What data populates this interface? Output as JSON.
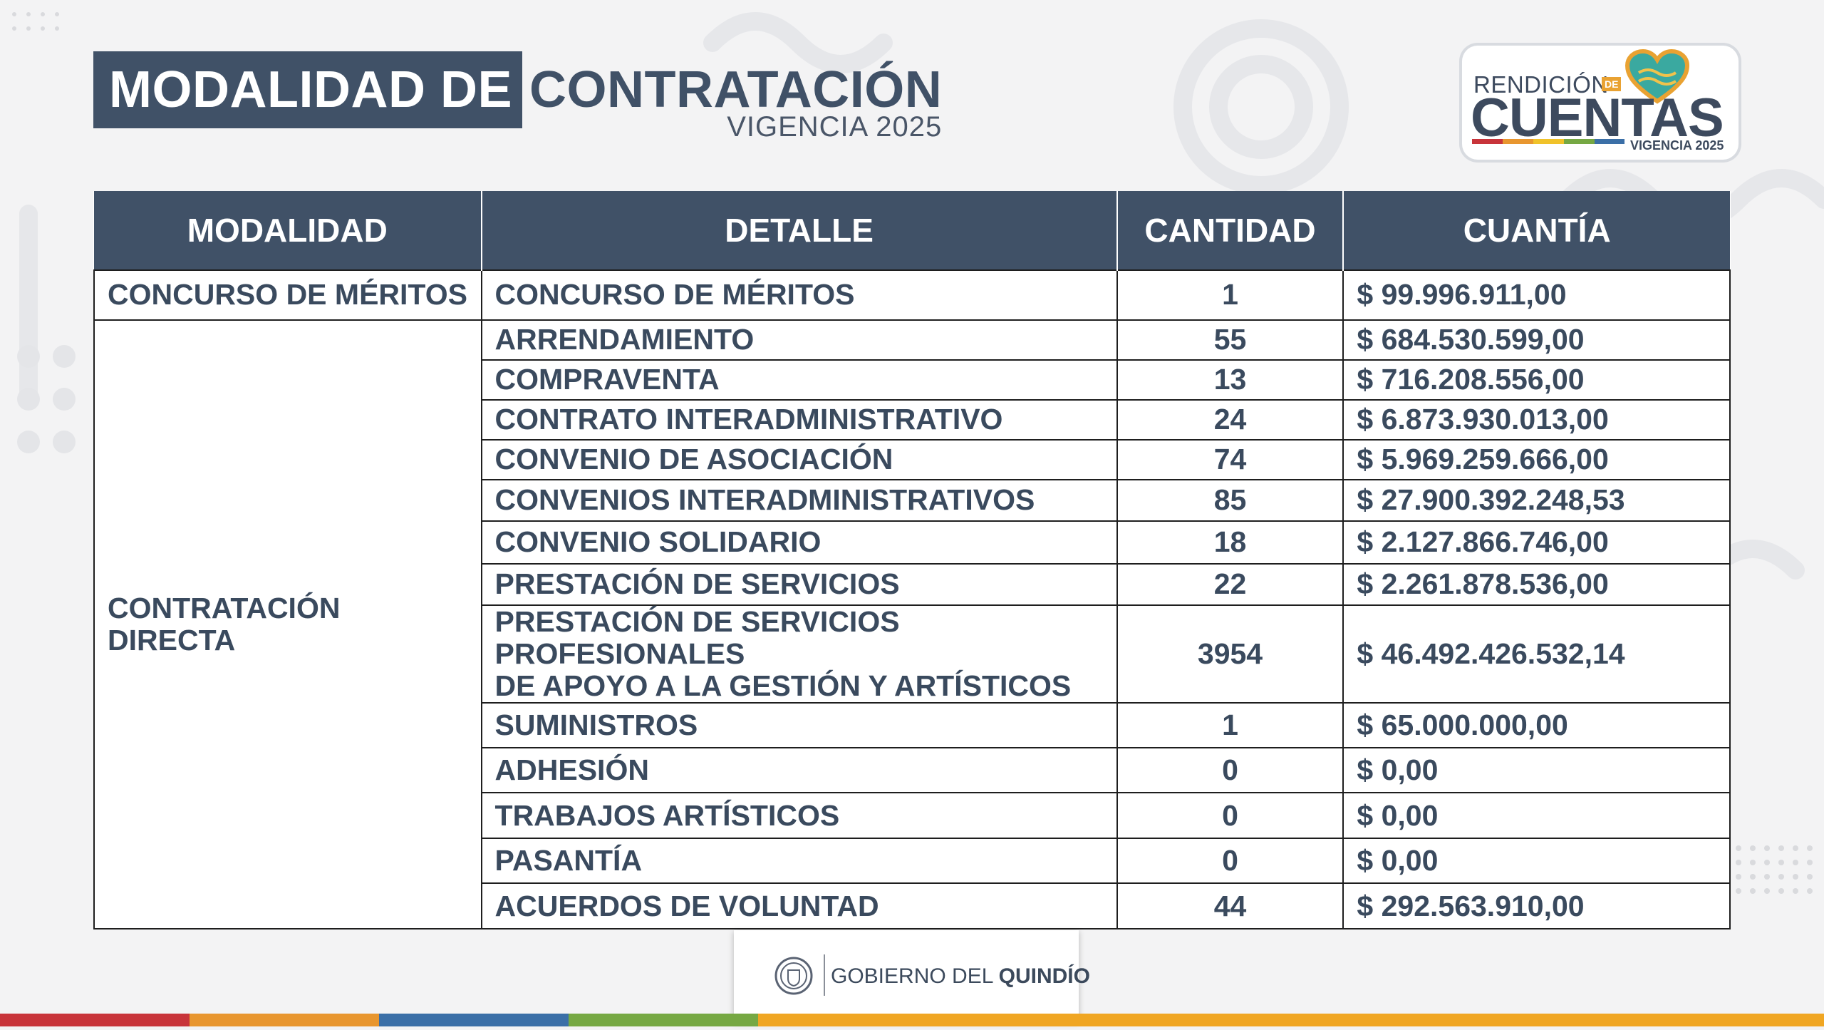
{
  "title": {
    "highlight": "MODALIDAD DE",
    "rest": "CONTRATACIÓN",
    "subtitle": "VIGENCIA 2025"
  },
  "logo": {
    "line1": "RENDICIÓN",
    "de": "DE",
    "line2": "CUENTAS",
    "line3": "VIGENCIA 2025"
  },
  "table": {
    "headers": [
      "MODALIDAD",
      "DETALLE",
      "CANTIDAD",
      "CUANTÍA"
    ],
    "groups": [
      {
        "modalidad": "CONCURSO DE MÉRITOS",
        "rows": [
          {
            "detalle": "CONCURSO DE MÉRITOS",
            "cantidad": "1",
            "cuantia": "$ 99.996.911,00"
          }
        ]
      },
      {
        "modalidad": "CONTRATACIÓN DIRECTA",
        "rows": [
          {
            "detalle": "ARRENDAMIENTO",
            "cantidad": "55",
            "cuantia": "$ 684.530.599,00"
          },
          {
            "detalle": "COMPRAVENTA",
            "cantidad": "13",
            "cuantia": "$ 716.208.556,00"
          },
          {
            "detalle": "CONTRATO INTERADMINISTRATIVO",
            "cantidad": "24",
            "cuantia": "$ 6.873.930.013,00"
          },
          {
            "detalle": "CONVENIO DE ASOCIACIÓN",
            "cantidad": "74",
            "cuantia": "$ 5.969.259.666,00"
          },
          {
            "detalle": "CONVENIOS INTERADMINISTRATIVOS",
            "cantidad": "85",
            "cuantia": "$ 27.900.392.248,53"
          },
          {
            "detalle": "CONVENIO SOLIDARIO",
            "cantidad": "18",
            "cuantia": "$ 2.127.866.746,00"
          },
          {
            "detalle": "PRESTACIÓN DE SERVICIOS",
            "cantidad": "22",
            "cuantia": "$ 2.261.878.536,00"
          },
          {
            "detalle": "PRESTACIÓN DE SERVICIOS PROFESIONALES",
            "detalle2": "DE APOYO A LA GESTIÓN Y ARTÍSTICOS",
            "cantidad": "3954",
            "cuantia": "$ 46.492.426.532,14"
          },
          {
            "detalle": "SUMINISTROS",
            "cantidad": "1",
            "cuantia": "$ 65.000.000,00"
          },
          {
            "detalle": "ADHESIÓN",
            "cantidad": "0",
            "cuantia": "$ 0,00"
          },
          {
            "detalle": "TRABAJOS ARTÍSTICOS",
            "cantidad": "0",
            "cuantia": "$ 0,00"
          },
          {
            "detalle": "PASANTÍA",
            "cantidad": "0",
            "cuantia": "$ 0,00"
          },
          {
            "detalle": "ACUERDOS DE VOLUNTAD",
            "cantidad": "44",
            "cuantia": "$ 292.563.910,00"
          }
        ]
      }
    ]
  },
  "footer": {
    "prefix": "GOBIERNO DEL ",
    "bold": "QUINDÍO",
    "seal_icon": "coat-of-arms-icon"
  },
  "colors": {
    "header_bg": "#405167",
    "quantity_text": "#7dbf3d",
    "stripes": [
      "#c8343a",
      "#e8962f",
      "#3b6fa7",
      "#76a843",
      "#f0a623"
    ]
  }
}
